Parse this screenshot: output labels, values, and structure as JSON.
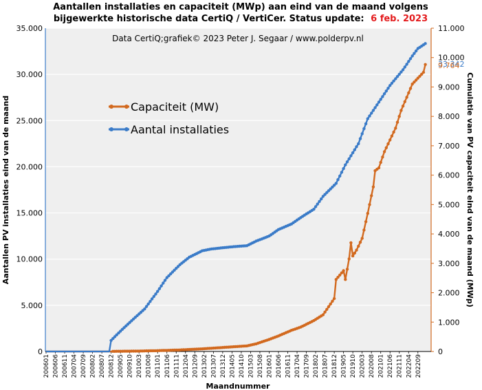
{
  "chart_data": {
    "type": "line",
    "title_line1": "Aantallen installaties en capaciteit (MWp) aan eind van de maand volgens",
    "title_line2": "bijgewerkte historische data CertiQ / VertiCer. Status update:",
    "status_date": "6 feb. 2023",
    "credit": "Data CertiQ;grafiek© 2023 Peter J. Segaar / www.polderpv.nl",
    "xlabel": "Maandnummer",
    "ylabel_left": "Aantallen PV installaties eind van de maand",
    "ylabel_right": "Cumulatie van PV capaciteit eind van de maand (MWp)",
    "ylim_left": [
      0,
      35000
    ],
    "ylim_right": [
      0,
      11000
    ],
    "yticks_left": [
      "0",
      "5.000",
      "10.000",
      "15.000",
      "20.000",
      "25.000",
      "30.000",
      "35.000"
    ],
    "yticks_right": [
      "0",
      "1.000",
      "2.000",
      "3.000",
      "4.000",
      "5.000",
      "6.000",
      "7.000",
      "8.000",
      "9.000",
      "10.000",
      "11.000"
    ],
    "x_start": "200601",
    "x_end": "202301",
    "xtick_labels": [
      "200601",
      "200606",
      "200611",
      "200704",
      "200709",
      "200802",
      "200807",
      "200812",
      "200905",
      "200910",
      "201003",
      "201008",
      "201101",
      "201106",
      "201111",
      "201204",
      "201209",
      "201302",
      "201307",
      "201312",
      "201405",
      "201410",
      "201503",
      "201508",
      "201601",
      "201606",
      "201611",
      "201704",
      "201709",
      "201802",
      "201807",
      "201812",
      "201905",
      "201910",
      "202003",
      "202008",
      "202101",
      "202106",
      "202111",
      "202204",
      "202209"
    ],
    "grid": true,
    "legend_placement": "center-left",
    "last_value_installaties": "33.342",
    "last_value_capaciteit": "9.764",
    "series": [
      {
        "name": "Capaciteit (MW)",
        "axis": "right",
        "color": "#d2691e",
        "points": [
          [
            "200601",
            0
          ],
          [
            "200812",
            0
          ],
          [
            "200901",
            5
          ],
          [
            "201001",
            12
          ],
          [
            "201101",
            28
          ],
          [
            "201201",
            52
          ],
          [
            "201301",
            90
          ],
          [
            "201401",
            140
          ],
          [
            "201501",
            190
          ],
          [
            "201506",
            260
          ],
          [
            "201601",
            410
          ],
          [
            "201606",
            530
          ],
          [
            "201701",
            720
          ],
          [
            "201706",
            830
          ],
          [
            "201801",
            1050
          ],
          [
            "201806",
            1250
          ],
          [
            "201812",
            1800
          ],
          [
            "201901",
            2450
          ],
          [
            "201903",
            2600
          ],
          [
            "201905",
            2750
          ],
          [
            "201906",
            2450
          ],
          [
            "201908",
            3150
          ],
          [
            "201909",
            3700
          ],
          [
            "201910",
            3250
          ],
          [
            "201912",
            3450
          ],
          [
            "202003",
            3850
          ],
          [
            "202006",
            4700
          ],
          [
            "202009",
            5600
          ],
          [
            "202010",
            6150
          ],
          [
            "202012",
            6250
          ],
          [
            "202103",
            6800
          ],
          [
            "202106",
            7200
          ],
          [
            "202109",
            7600
          ],
          [
            "202112",
            8200
          ],
          [
            "202203",
            8650
          ],
          [
            "202206",
            9100
          ],
          [
            "202209",
            9300
          ],
          [
            "202212",
            9500
          ],
          [
            "202301",
            9764
          ]
        ]
      },
      {
        "name": "Aantal installaties",
        "axis": "left",
        "color": "#3a7bc8",
        "points": [
          [
            "200601",
            0
          ],
          [
            "200811",
            0
          ],
          [
            "200812",
            1200
          ],
          [
            "200906",
            2400
          ],
          [
            "201001",
            3700
          ],
          [
            "201006",
            4600
          ],
          [
            "201101",
            6500
          ],
          [
            "201106",
            8000
          ],
          [
            "201201",
            9400
          ],
          [
            "201206",
            10200
          ],
          [
            "201301",
            10900
          ],
          [
            "201306",
            11100
          ],
          [
            "201401",
            11250
          ],
          [
            "201406",
            11350
          ],
          [
            "201501",
            11450
          ],
          [
            "201506",
            11950
          ],
          [
            "201601",
            12500
          ],
          [
            "201606",
            13200
          ],
          [
            "201701",
            13800
          ],
          [
            "201706",
            14500
          ],
          [
            "201801",
            15400
          ],
          [
            "201806",
            16800
          ],
          [
            "201901",
            18200
          ],
          [
            "201906",
            20200
          ],
          [
            "202001",
            22500
          ],
          [
            "202006",
            25200
          ],
          [
            "202101",
            27300
          ],
          [
            "202106",
            28800
          ],
          [
            "202201",
            30500
          ],
          [
            "202206",
            32000
          ],
          [
            "202209",
            32800
          ],
          [
            "202212",
            33200
          ],
          [
            "202301",
            33342
          ]
        ]
      }
    ]
  }
}
